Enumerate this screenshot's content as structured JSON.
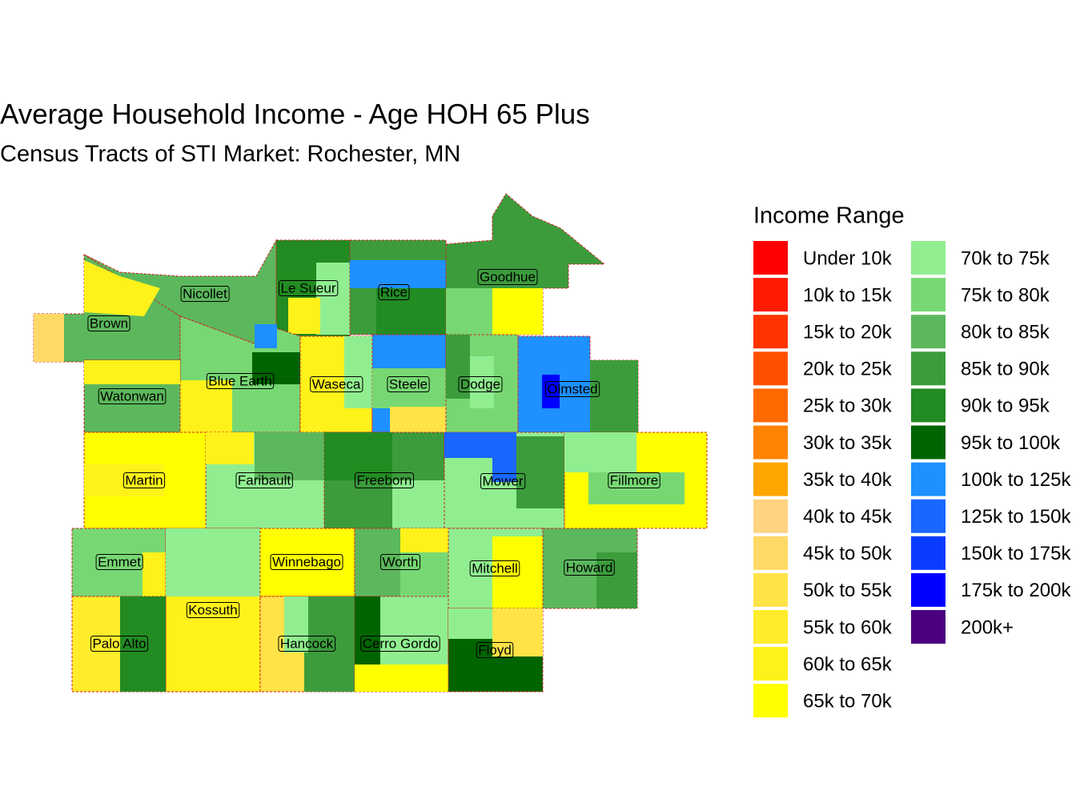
{
  "title": "Average Household Income - Age HOH 65 Plus",
  "subtitle": "Census Tracts of STI Market: Rochester, MN",
  "legend": {
    "title": "Income Range",
    "items": [
      {
        "label": "Under 10k",
        "color": "#ff0000"
      },
      {
        "label": "10k to 15k",
        "color": "#ff1a00"
      },
      {
        "label": "15k to 20k",
        "color": "#ff3300"
      },
      {
        "label": "20k to 25k",
        "color": "#ff5000"
      },
      {
        "label": "25k to 30k",
        "color": "#ff6a00"
      },
      {
        "label": "30k to 35k",
        "color": "#ff8200"
      },
      {
        "label": "35k to 40k",
        "color": "#ffa500"
      },
      {
        "label": "40k to 45k",
        "color": "#ffd37f"
      },
      {
        "label": "45k to 50k",
        "color": "#ffd966"
      },
      {
        "label": "50k to 55k",
        "color": "#ffe347"
      },
      {
        "label": "55k to 60k",
        "color": "#ffec2b"
      },
      {
        "label": "60k to 65k",
        "color": "#fff21a"
      },
      {
        "label": "65k to 70k",
        "color": "#ffff00"
      },
      {
        "label": "70k to 75k",
        "color": "#90ee90"
      },
      {
        "label": "75k to 80k",
        "color": "#77d873"
      },
      {
        "label": "80k to 85k",
        "color": "#5cb85c"
      },
      {
        "label": "85k to 90k",
        "color": "#3c9c3c"
      },
      {
        "label": "90k to 95k",
        "color": "#228b22"
      },
      {
        "label": "95k to 100k",
        "color": "#006400"
      },
      {
        "label": "100k to 125k",
        "color": "#1e90ff"
      },
      {
        "label": "125k to 150k",
        "color": "#1a66ff"
      },
      {
        "label": "150k to 175k",
        "color": "#0a3cff"
      },
      {
        "label": "175k to 200k",
        "color": "#0000ff"
      },
      {
        "label": "200k+",
        "color": "#4b0082"
      }
    ]
  },
  "counties": [
    "Brown",
    "Nicollet",
    "Le Sueur",
    "Rice",
    "Goodhue",
    "Blue Earth",
    "Waseca",
    "Steele",
    "Dodge",
    "Olmsted",
    "Watonwan",
    "Martin",
    "Faribault",
    "Freeborn",
    "Mower",
    "Fillmore",
    "Emmet",
    "Kossuth",
    "Winnebago",
    "Worth",
    "Mitchell",
    "Howard",
    "Palo Alto",
    "Hancock",
    "Cerro Gordo",
    "Floyd"
  ]
}
